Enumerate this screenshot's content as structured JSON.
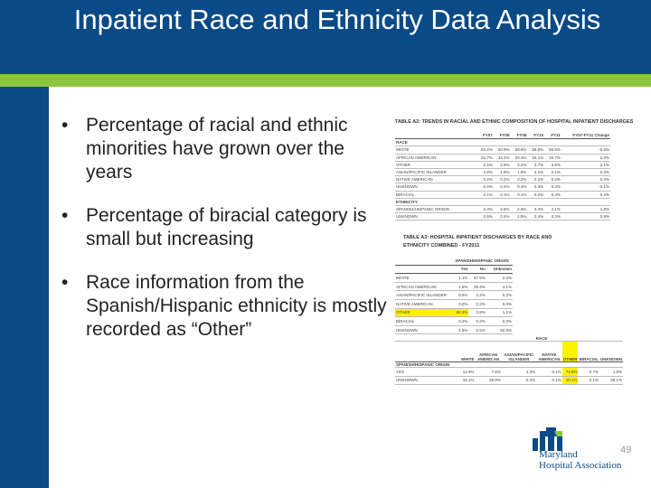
{
  "slide": {
    "title": "Inpatient Race and Ethnicity Data Analysis",
    "bullets": [
      "Percentage of racial and ethnic minorities have grown over the years",
      "Percentage of biracial category is small but increasing",
      "Race information from the Spanish/Hispanic ethnicity is mostly recorded as “Other”"
    ],
    "bullet_glyph": "•",
    "slide_number": "49",
    "colors": {
      "header": "#0a4a86",
      "accent": "#8cc63e",
      "highlight": "#fff200"
    }
  },
  "table1": {
    "title": "TABLE A2: TRENDS IN RACIAL AND ETHNIC COMPOSITION OF HOSPITAL INPATIENT DISCHARGES",
    "columns": [
      "",
      "FY07",
      "FY08",
      "FY09",
      "FY10",
      "FY11",
      "FY07-FY11 Change"
    ],
    "race_label": "RACE",
    "race_rows": [
      {
        "label": "WHITE",
        "values": [
          "62.2%",
          "60.9%",
          "59.8%",
          "58.8%",
          "56.6%",
          "-5.6%"
        ]
      },
      {
        "label": "AFRICAN AMERICAN",
        "values": [
          "32.7%",
          "33.2%",
          "33.4%",
          "34.1%",
          "34.7%",
          "2.0%"
        ]
      },
      {
        "label": "OTHER",
        "values": [
          "2.5%",
          "2.9%",
          "3.2%",
          "3.7%",
          "4.6%",
          "2.1%"
        ]
      },
      {
        "label": "ASIAN/PACIFIC ISLANDER",
        "values": [
          "1.8%",
          "1.9%",
          "1.9%",
          "2.1%",
          "2.1%",
          "0.3%"
        ]
      },
      {
        "label": "NATIVE AMERICAN",
        "values": [
          "0.2%",
          "0.2%",
          "0.2%",
          "0.2%",
          "0.2%",
          "0.0%"
        ]
      },
      {
        "label": "UNKNOWN",
        "values": [
          "0.4%",
          "0.4%",
          "0.4%",
          "0.3%",
          "0.3%",
          "-0.1%"
        ]
      },
      {
        "label": "BIRACIAL",
        "values": [
          "0.1%",
          "0.1%",
          "0.1%",
          "0.2%",
          "0.3%",
          "0.2%"
        ]
      }
    ],
    "ethnicity_label": "ETHNICITY",
    "ethnicity_rows": [
      {
        "label": "SPANISH/HISPANIC ORIGIN",
        "values": [
          "2.3%",
          "2.6%",
          "2.9%",
          "3.4%",
          "4.1%",
          "1.8%"
        ]
      },
      {
        "label": "UNKNOWN",
        "values": [
          "2.5%",
          "2.5%",
          "2.5%",
          "2.4%",
          "3.3%",
          "0.8%"
        ]
      }
    ]
  },
  "table2": {
    "title_line1": "TABLE A3: HOSPITAL INPATIENT DISCHARGES BY RACE AND",
    "title_line2": "ETHNICITY COMBINED - FY2011",
    "group_header": "SPANISH/HISPANIC ORIGIN",
    "columns": [
      "",
      "Yes",
      "No",
      "Unknown"
    ],
    "rows": [
      {
        "label": "WHITE",
        "values": [
          "1.1%",
          "57.5%",
          "2.2%"
        ],
        "highlight": false
      },
      {
        "label": "AFRICAN AMERICAN",
        "values": [
          "1.6%",
          "35.4%",
          "4.1%"
        ],
        "highlight": false
      },
      {
        "label": "ASIAN/PACIFIC ISLANDER",
        "values": [
          "0.5%",
          "2.2%",
          "0.2%"
        ],
        "highlight": false
      },
      {
        "label": "NATIVE AMERICAN",
        "values": [
          "0.0%",
          "0.3%",
          "0.0%"
        ],
        "highlight": false
      },
      {
        "label": "OTHER",
        "values": [
          "80.3%",
          "3.8%",
          "1.1%"
        ],
        "highlight": true
      },
      {
        "label": "BIRACIAL",
        "values": [
          "0.2%",
          "0.3%",
          "0.0%"
        ],
        "highlight": false
      },
      {
        "label": "UNKNOWN",
        "values": [
          "4.5%",
          "0.5%",
          "92.5%"
        ],
        "highlight": false
      }
    ]
  },
  "table3": {
    "group_header": "RACE",
    "columns": [
      "",
      "WHITE",
      "AFRICAN AMERICAN",
      "ASIAN/PACIFIC ISLANDER",
      "NATIVE AMERICAN",
      "OTHER",
      "BIRACIAL",
      "UNKNOWN"
    ],
    "section_label": "SPANISH/HISPANIC ORIGIN",
    "rows": [
      {
        "label": "YES",
        "values": [
          "12.9%",
          "7.8%",
          "1.3%",
          "0.1%",
          "74.5%",
          "0.7%",
          "1.9%"
        ]
      },
      {
        "label": "UNKNOWN",
        "values": [
          "16.1%",
          "35.9%",
          "0.2%",
          "0.1%",
          "10.1%",
          "0.1%",
          "38.1%"
        ]
      }
    ],
    "highlight_column": 5
  },
  "logo": {
    "line1": "Maryland",
    "line2": "Hospital Association"
  }
}
